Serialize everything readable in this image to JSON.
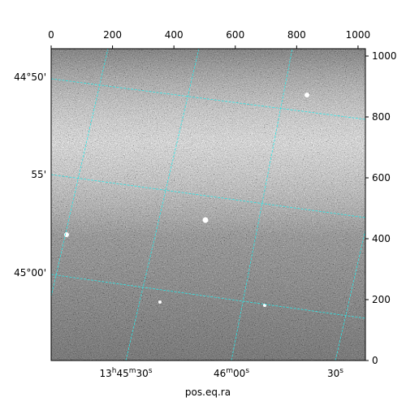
{
  "chart_data": {
    "type": "image",
    "xlabel": "pos.eq.ra",
    "xlim": [
      0,
      1024
    ],
    "xticks": [
      0,
      200,
      400,
      600,
      800,
      1000
    ],
    "ylim": [
      0,
      1024
    ],
    "yticks": [
      0,
      200,
      400,
      600,
      800,
      1000
    ],
    "dec_ticks": [
      "44°50'",
      "55'",
      "45°00'"
    ],
    "ra_ticks": [
      "13h45m30s",
      "46m00s",
      "30s"
    ]
  }
}
